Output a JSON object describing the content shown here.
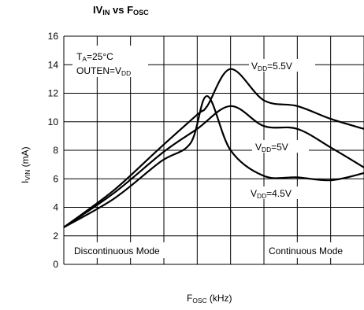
{
  "chart_data": {
    "type": "line",
    "title": {
      "main": "IV",
      "sub1": "IN",
      "mid": " vs F",
      "sub2": "OSC"
    },
    "xlabel": {
      "main": "F",
      "sub": "OSC",
      "rest": " (kHz)"
    },
    "ylabel": {
      "main": "I",
      "sub": "VIN",
      "rest": " (mA)"
    },
    "ylim": [
      0,
      16
    ],
    "yticks": [
      0,
      2,
      4,
      6,
      8,
      10,
      12,
      14,
      16
    ],
    "xlim": [
      0,
      9
    ],
    "grid": true,
    "conditions": [
      {
        "main": "T",
        "sub": "A",
        "rest": "=25°C"
      },
      {
        "main": "OUTEN=V",
        "sub": "DD",
        "rest": ""
      }
    ],
    "regions": [
      "Discontinuous Mode",
      "Continuous Mode"
    ],
    "series": [
      {
        "name": {
          "main": "V",
          "sub": "DD",
          "rest": "=5.5V"
        },
        "x": [
          0,
          1.5,
          2.9,
          4.0,
          4.3,
          5.0,
          6.0,
          7.0,
          8.0,
          9.0
        ],
        "y": [
          2.6,
          5.2,
          8.2,
          10.5,
          11.1,
          13.7,
          11.5,
          11.1,
          10.2,
          9.5
        ]
      },
      {
        "name": {
          "main": "V",
          "sub": "DD",
          "rest": "=5V"
        },
        "x": [
          0,
          1.5,
          3.0,
          4.0,
          5.0,
          6.0,
          7.0,
          8.0,
          9.0
        ],
        "y": [
          2.6,
          5.0,
          7.9,
          9.5,
          11.1,
          9.7,
          9.5,
          8.2,
          6.8
        ]
      },
      {
        "name": {
          "main": "V",
          "sub": "DD",
          "rest": "=4.5V"
        },
        "x": [
          0,
          1.5,
          2.9,
          3.8,
          4.3,
          5.0,
          6.0,
          7.0,
          8.0,
          9.0
        ],
        "y": [
          2.6,
          4.6,
          7.2,
          8.5,
          11.8,
          8.0,
          6.2,
          6.1,
          5.9,
          6.4
        ]
      }
    ]
  }
}
